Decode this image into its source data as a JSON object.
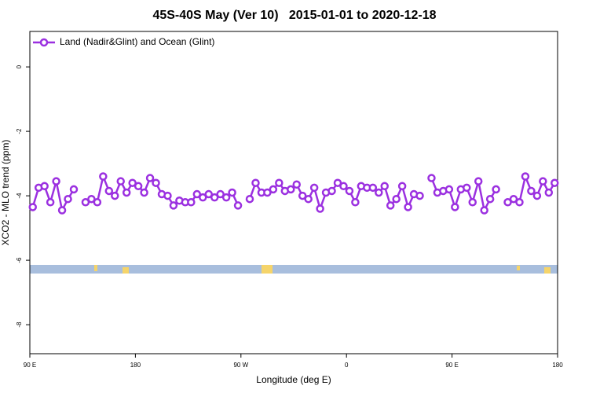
{
  "chart_data": {
    "type": "line",
    "title": "45S-40S May (Ver 10)   2015-01-01 to 2020-12-18",
    "x_label": "Longitude (deg E)",
    "y_label": "XCO2 - MLO trend (ppm)",
    "legend": "upper left",
    "x": [
      92.5,
      97.5,
      102.5,
      107.5,
      112.5,
      117.5,
      122.5,
      127.5,
      132.5,
      137.5,
      142.5,
      147.5,
      152.5,
      157.5,
      162.5,
      167.5,
      172.5,
      177.5,
      182.5,
      187.5,
      192.5,
      197.5,
      202.5,
      207.5,
      212.5,
      217.5,
      222.5,
      227.5,
      232.5,
      237.5,
      242.5,
      247.5,
      252.5,
      257.5,
      262.5,
      267.5,
      272.5,
      277.5,
      282.5,
      287.5,
      292.5,
      297.5,
      302.5,
      307.5,
      312.5,
      317.5,
      322.5,
      327.5,
      332.5,
      337.5,
      342.5,
      347.5,
      352.5,
      357.5,
      362.5,
      367.5,
      372.5,
      377.5,
      382.5,
      387.5,
      392.5,
      397.5,
      402.5,
      407.5,
      412.5,
      417.5,
      422.5,
      427.5,
      432.5,
      437.5,
      442.5,
      447.5,
      452.5,
      457.5,
      462.5,
      467.5,
      472.5,
      477.5,
      482.5,
      487.5,
      492.5,
      497.5,
      502.5,
      507.5,
      512.5,
      517.5,
      522.5,
      527.5,
      532.5,
      537.5
    ],
    "series": [
      {
        "name": "Land (Nadir&Glint) and Ocean (Glint)",
        "color": "#9b30e0",
        "values": [
          -4.35,
          -3.75,
          -3.7,
          -4.2,
          -3.55,
          -4.45,
          -4.1,
          -3.8,
          null,
          -4.2,
          -4.1,
          -4.2,
          -3.4,
          -3.85,
          -4.0,
          -3.55,
          -3.9,
          -3.6,
          -3.7,
          -3.9,
          -3.45,
          -3.6,
          -3.95,
          -4.0,
          -4.3,
          -4.15,
          -4.2,
          -4.2,
          -3.95,
          -4.05,
          -3.95,
          -4.05,
          -3.95,
          -4.05,
          -3.9,
          -4.3,
          null,
          -4.1,
          -3.6,
          -3.9,
          -3.9,
          -3.8,
          -3.6,
          -3.85,
          -3.8,
          -3.65,
          -4.0,
          -4.1,
          -3.75,
          -4.4,
          -3.9,
          -3.85,
          -3.6,
          -3.7,
          -3.85,
          -4.2,
          -3.7,
          -3.75,
          -3.75,
          -3.9,
          -3.7,
          -4.3,
          -4.1,
          -3.7,
          -4.35,
          -3.95,
          -4.0,
          null,
          -3.45,
          -3.9,
          -3.85,
          -3.8,
          -4.35,
          -3.8,
          -3.75,
          -4.2,
          -3.55,
          -4.45,
          -4.1,
          -3.8,
          null,
          -4.2,
          -4.1,
          -4.2,
          -3.4,
          -3.85,
          -4.0,
          -3.55,
          -3.9,
          -3.6
        ]
      }
    ],
    "xlim": [
      90,
      540
    ],
    "xticks": [
      {
        "value": 90,
        "label": "90 E"
      },
      180,
      {
        "value": 270,
        "label": "90 W"
      },
      {
        "value": 360,
        "label": "0"
      },
      {
        "value": 450,
        "label": "90 E"
      },
      {
        "value": 540,
        "label": "180"
      }
    ],
    "ylim": [
      -8.9,
      1.1
    ],
    "yticks": [
      0,
      -2,
      -4,
      -6,
      -8
    ]
  }
}
